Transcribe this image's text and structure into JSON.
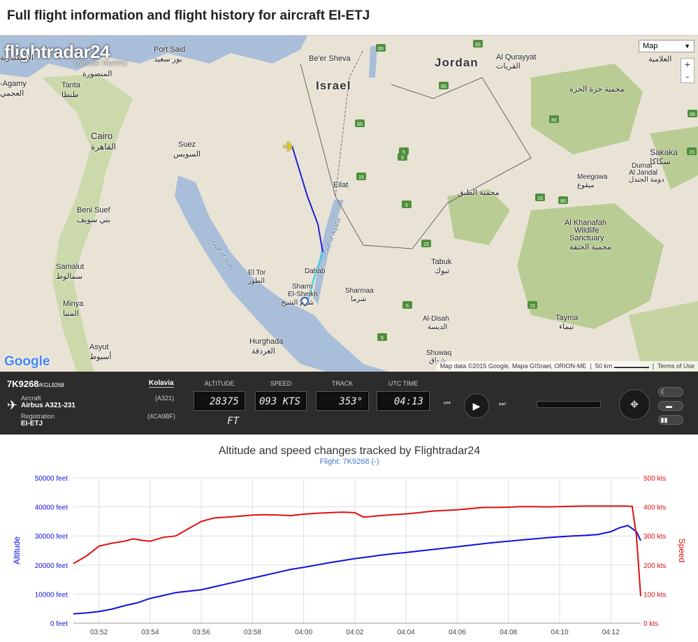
{
  "page": {
    "title": "Full flight information and flight history for aircraft EI-ETJ"
  },
  "map": {
    "logo": {
      "name": "flightradar24",
      "subtitle": "LIVE AIR TRAFFIC"
    },
    "map_type": "Map",
    "zoom_in": "+",
    "zoom_out": "-",
    "google": "Google",
    "attribution": {
      "data": "Map data ©2015 Google, Mapa GISrael, ORION-ME",
      "scale": "50 km",
      "terms": "Terms of Use"
    },
    "labels": {
      "port_said": "Port Said",
      "port_said_ar": "بور سعيد",
      "beer_sheva": "Be'er Sheva",
      "israel": "Israel",
      "jordan": "Jordan",
      "al_qurayyat": "Al Qurayyat",
      "al_qurayyat_ar": "القريات",
      "agamy": "-Agamy",
      "agamy_ar": "العجمي",
      "tanta": "Tanta",
      "tanta_ar": "طنطا",
      "mansoura_ar": "المنصورة",
      "iskandaria_ar": "الإسكندرية",
      "cairo": "Cairo",
      "cairo_ar": "القاهرة",
      "suez": "Suez",
      "suez_ar": "السويس",
      "eilat": "Eilat",
      "harrat_ar": "محمية حرة الحرة",
      "sakaka": "Sakaka",
      "sakaka_ar": "سكاكا",
      "dumat": "Dumat",
      "al_jandal": "Al Jandal",
      "dumat_ar": "دومة الجندل",
      "meegowa": "Meegowa",
      "meegowa_ar": "ميقوع",
      "tubaiq_ar": "محمية الطبق",
      "khanafah1": "Al Khanafah",
      "khanafah2": "Wildlife",
      "khanafah3": "Sanctuary",
      "khanafah_ar": "محمية الخنفة",
      "beni_suef": "Beni Suef",
      "beni_suef_ar": "بني سويف",
      "gulf_suez": "Gulf of Suez",
      "gulf_aqaba": "Gulf of Aqaba",
      "el_tor": "El Tor",
      "el_tor_ar": "الطور",
      "dahab": "Dahab",
      "sharm1": "Sharm",
      "sharm2": "El-Sheikh",
      "sharm_ar": "شرم الشيخ",
      "sharmaa": "Sharmaa",
      "sharmaa_ar": "شرما",
      "tabuk": "Tabuk",
      "tabuk_ar": "تبوك",
      "samalut": "Samalut",
      "samalut_ar": "سمالوط",
      "minya": "Minya",
      "minya_ar": "المنيا",
      "al_disah": "Al-Disah",
      "al_disah_ar": "الديسة",
      "shuwaq": "Shuwaq",
      "shuwaq_ar": "شواق",
      "tayma": "Tayma",
      "tayma_ar": "تيماء",
      "hurghada": "Hurghada",
      "hurghada_ar": "الغردقة",
      "asyut": "Asyut",
      "asyut_ar": "أسيوط",
      "alamiya_ar": "العلامية"
    },
    "road_shields": [
      "65",
      "65",
      "65",
      "65",
      "5",
      "5",
      "5",
      "15",
      "15",
      "15",
      "80",
      "80",
      "65",
      "15",
      "5",
      "5",
      "15"
    ]
  },
  "flight": {
    "number": "7K9268",
    "callsign": "/KGL9268",
    "airline": "Kolavia",
    "aircraft_label": "Aircraft",
    "aircraft_value": "Airbus A321-231",
    "aircraft_code": "(A321)",
    "registration_label": "Registration",
    "registration_value": "EI-ETJ",
    "mode_s": "(4CA9BF)",
    "altitude_label": "ALTITUDE",
    "altitude_value": "28375 FT",
    "speed_label": "SPEED",
    "speed_value": "093 KTS",
    "track_label": "TRACK",
    "track_value": "353°",
    "time_label": "UTC TIME",
    "time_value": "04:13"
  },
  "chart_data": {
    "type": "line",
    "title": "Altitude and speed changes tracked by Flightradar24",
    "subtitle": "Flight: 7K9268 (-)",
    "ylabel": "Altitude",
    "y2label": "Speed",
    "ylim": [
      0,
      50000
    ],
    "y2lim": [
      0,
      500
    ],
    "y_ticks": [
      "0 feet",
      "10000 feet",
      "20000 feet",
      "30000 feet",
      "40000 feet",
      "50000 feet"
    ],
    "y2_ticks": [
      "0 kts",
      "100 kts",
      "200 kts",
      "300 kts",
      "400 kts",
      "500 kts"
    ],
    "x_ticks": [
      "03:52",
      "03:54",
      "03:56",
      "03:58",
      "04:00",
      "04:02",
      "04:04",
      "04:06",
      "04:08",
      "04:10",
      "04:12"
    ],
    "series": [
      {
        "name": "Altitude",
        "color": "#1010e0",
        "axis": "left",
        "x": [
          "03:51:00",
          "03:51:30",
          "03:52:00",
          "03:52:30",
          "03:53:00",
          "03:53:30",
          "03:54:00",
          "03:54:30",
          "03:55:00",
          "03:55:30",
          "03:56:00",
          "03:56:30",
          "03:57:00",
          "03:57:30",
          "03:58:00",
          "03:58:30",
          "03:59:00",
          "03:59:30",
          "04:00:00",
          "04:00:30",
          "04:01:00",
          "04:01:30",
          "04:02:00",
          "04:02:30",
          "04:03:00",
          "04:03:30",
          "04:04:00",
          "04:04:30",
          "04:05:00",
          "04:05:30",
          "04:06:00",
          "04:06:30",
          "04:07:00",
          "04:07:30",
          "04:08:00",
          "04:08:30",
          "04:09:00",
          "04:09:30",
          "04:10:00",
          "04:10:30",
          "04:11:00",
          "04:11:30",
          "04:12:00",
          "04:12:20",
          "04:12:40",
          "04:13:00",
          "04:13:10"
        ],
        "values": [
          3200,
          3500,
          4000,
          4800,
          6000,
          7000,
          8500,
          9500,
          10500,
          11000,
          11500,
          12500,
          13500,
          14500,
          15500,
          16500,
          17500,
          18500,
          19200,
          20000,
          20800,
          21500,
          22200,
          22800,
          23400,
          23900,
          24300,
          24800,
          25300,
          25800,
          26300,
          26800,
          27300,
          27800,
          28200,
          28600,
          29000,
          29400,
          29700,
          30000,
          30200,
          30500,
          31500,
          32800,
          33600,
          31500,
          28400
        ]
      },
      {
        "name": "Speed",
        "color": "#e01010",
        "axis": "right",
        "x": [
          "03:51:00",
          "03:51:30",
          "03:52:00",
          "03:52:30",
          "03:53:00",
          "03:53:20",
          "03:53:40",
          "03:54:00",
          "03:54:30",
          "03:55:00",
          "03:55:30",
          "03:56:00",
          "03:56:30",
          "03:57:00",
          "03:57:30",
          "03:58:00",
          "03:58:30",
          "03:59:00",
          "03:59:30",
          "04:00:00",
          "04:00:30",
          "04:01:00",
          "04:01:30",
          "04:02:00",
          "04:02:20",
          "04:03:00",
          "04:03:30",
          "04:04:00",
          "04:04:30",
          "04:05:00",
          "04:05:30",
          "04:06:00",
          "04:06:30",
          "04:07:00",
          "04:07:30",
          "04:08:00",
          "04:08:30",
          "04:09:00",
          "04:09:30",
          "04:10:00",
          "04:10:30",
          "04:11:00",
          "04:11:30",
          "04:12:00",
          "04:12:30",
          "04:12:50",
          "04:13:00",
          "04:13:10"
        ],
        "values": [
          205,
          230,
          265,
          275,
          282,
          290,
          285,
          282,
          295,
          300,
          325,
          350,
          362,
          365,
          368,
          372,
          373,
          372,
          370,
          375,
          378,
          380,
          382,
          380,
          365,
          370,
          373,
          376,
          380,
          385,
          388,
          390,
          394,
          398,
          398,
          399,
          401,
          401,
          400,
          401,
          402,
          403,
          403,
          403,
          403,
          402,
          300,
          93
        ]
      }
    ]
  }
}
